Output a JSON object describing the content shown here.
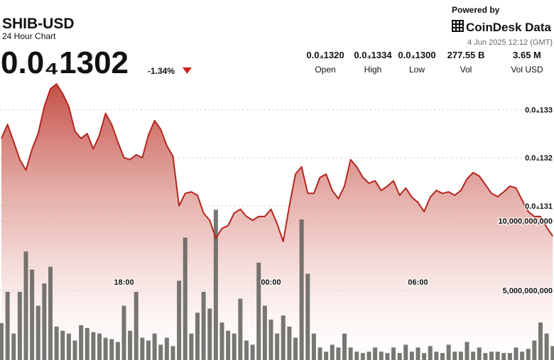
{
  "header": {
    "symbol": "SHIB-USD",
    "subtitle": "24 Hour Chart",
    "price": "0.0₄1302",
    "change": "-1.34%",
    "powered_by": "Powered by",
    "brand": "CoinDesk Data",
    "timestamp": "4 Jun 2025 12:12 (GMT)",
    "stats": [
      {
        "value": "0.0₄1320",
        "label": "Open"
      },
      {
        "value": "0.0₄1334",
        "label": "High"
      },
      {
        "value": "0.0₄1300",
        "label": "Low"
      },
      {
        "value": "277.55 B",
        "label": "Vol"
      },
      {
        "value": "3.65 M",
        "label": "Vol USD"
      }
    ]
  },
  "chart_data": {
    "type": "line",
    "categories": [
      null,
      null,
      null,
      null,
      null,
      null,
      null,
      null,
      null,
      null,
      null,
      null,
      null,
      null,
      null,
      null,
      null,
      null,
      null,
      null,
      "18:00",
      null,
      null,
      null,
      null,
      null,
      null,
      null,
      null,
      null,
      null,
      null,
      null,
      null,
      null,
      null,
      null,
      null,
      null,
      null,
      null,
      null,
      null,
      null,
      "00:00",
      null,
      null,
      null,
      null,
      null,
      null,
      null,
      null,
      null,
      null,
      null,
      null,
      null,
      null,
      null,
      null,
      null,
      null,
      null,
      null,
      null,
      null,
      null,
      "06:00",
      null,
      null,
      null,
      null,
      null,
      null,
      null,
      null,
      null,
      null,
      null,
      null,
      null,
      null,
      null,
      null,
      null,
      null,
      null,
      null,
      null,
      null
    ],
    "series": [
      {
        "color": "#b3261e",
        "values": [
          1.324e-05,
          1.3269e-05,
          1.3233e-05,
          1.3196e-05,
          1.3174e-05,
          1.3218e-05,
          1.325e-05,
          1.3306e-05,
          1.3343e-05,
          1.3353e-05,
          1.3333e-05,
          1.3306e-05,
          1.3255e-05,
          1.324e-05,
          1.325e-05,
          1.3218e-05,
          1.3247e-05,
          1.3292e-05,
          1.3269e-05,
          1.3233e-05,
          1.32e-05,
          1.3196e-05,
          1.3206e-05,
          1.32e-05,
          1.3247e-05,
          1.3277e-05,
          1.3259e-05,
          1.3225e-05,
          1.3203e-05,
          1.31e-05,
          1.3126e-05,
          1.3129e-05,
          1.3122e-05,
          1.3085e-05,
          1.307e-05,
          1.3033e-05,
          1.3053e-05,
          1.3059e-05,
          1.3085e-05,
          1.3093e-05,
          1.3078e-05,
          1.307e-05,
          1.3078e-05,
          1.3078e-05,
          1.3093e-05,
          1.3063e-05,
          1.3026e-05,
          1.31e-05,
          1.3166e-05,
          1.3181e-05,
          1.3126e-05,
          1.3126e-05,
          1.3159e-05,
          1.3166e-05,
          1.3132e-05,
          1.3115e-05,
          1.3141e-05,
          1.3196e-05,
          1.3181e-05,
          1.3159e-05,
          1.3147e-05,
          1.3152e-05,
          1.3132e-05,
          1.3141e-05,
          1.3152e-05,
          1.3122e-05,
          1.3137e-05,
          1.3118e-05,
          1.3107e-05,
          1.3088e-05,
          1.3118e-05,
          1.3132e-05,
          1.3126e-05,
          1.3129e-05,
          1.3122e-05,
          1.3132e-05,
          1.3156e-05,
          1.3169e-05,
          1.3162e-05,
          1.3144e-05,
          1.3126e-05,
          1.3119e-05,
          1.3129e-05,
          1.3141e-05,
          1.3137e-05,
          1.3112e-05,
          1.3088e-05,
          1.3078e-05,
          1.3078e-05,
          1.3056e-05,
          1.3037e-05
        ]
      },
      {
        "color": "#5f5f5a",
        "axis": "y2",
        "values": [
          2650000000,
          4900000000,
          1900000000,
          4900000000,
          7800000000,
          6500000000,
          3900000000,
          5500000000,
          6700000000,
          2400000000,
          2100000000,
          1900000000,
          1400000000,
          2500000000,
          2300000000,
          2000000000,
          1900000000,
          1600000000,
          1500000000,
          1300000000,
          3900000000,
          2100000000,
          4900000000,
          1600000000,
          1400000000,
          1900000000,
          1100000000,
          1600000000,
          1000000000,
          5700000000,
          8800000000,
          1900000000,
          3400000000,
          4900000000,
          3700000000,
          10800000000,
          2700000000,
          2100000000,
          1900000000,
          4400000000,
          1400000000,
          1100000000,
          7000000000,
          3900000000,
          2900000000,
          1900000000,
          3200000000,
          2400000000,
          1600000000,
          10100000000,
          6200000000,
          1900000000,
          900000000,
          600000000,
          1100000000,
          900000000,
          1900000000,
          900000000,
          600000000,
          500000000,
          600000000,
          900000000,
          600000000,
          500000000,
          900000000,
          500000000,
          1100000000,
          600000000,
          900000000,
          500000000,
          1000000000,
          600000000,
          500000000,
          1100000000,
          600000000,
          600000000,
          1300000000,
          600000000,
          900000000,
          500000000,
          600000000,
          600000000,
          500000000,
          500000000,
          900000000,
          600000000,
          800000000,
          1400000000,
          2700000000,
          1900000000,
          1000000000
        ]
      }
    ],
    "ylim": [
      1.278e-05,
      1.338e-05
    ],
    "yticks": [
      {
        "value": 1.31e-05,
        "label": "0.0₄131"
      },
      {
        "value": 1.32e-05,
        "label": "0.0₄132"
      },
      {
        "value": 1.33e-05,
        "label": "0.0₄133"
      }
    ],
    "y2lim": [
      0,
      20770000000
    ],
    "y2ticks": [
      {
        "value": 5000000000,
        "label": "5,000,000,000"
      },
      {
        "value": 10000000000,
        "label": "10,000,000,000"
      }
    ],
    "grid": true
  }
}
